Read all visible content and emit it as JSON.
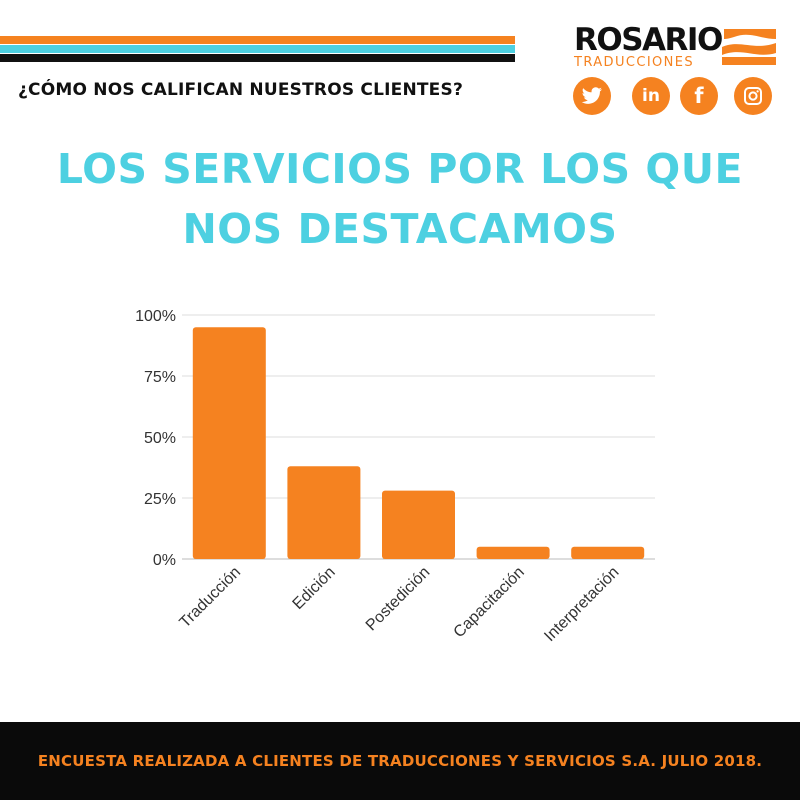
{
  "header": {
    "question": "¿CÓMO NOS CALIFICAN NUESTROS CLIENTES?",
    "brand_name": "ROSARIO",
    "brand_sub": "TRADUCCIONES"
  },
  "social_icons": [
    "twitter-icon",
    "linkedin-icon",
    "facebook-icon",
    "instagram-icon"
  ],
  "headline": {
    "line1": "LOS SERVICIOS POR LOS QUE",
    "line2": "NOS DESTACAMOS"
  },
  "colors": {
    "orange": "#f58220",
    "cyan": "#4dd0e1",
    "black": "#111111"
  },
  "chart_data": {
    "type": "bar",
    "categories": [
      "Traducción",
      "Edición",
      "Postedición",
      "Capacitación",
      "Interpretación"
    ],
    "values": [
      95,
      38,
      28,
      5,
      5
    ],
    "ylim": [
      0,
      100
    ],
    "yticks": [
      "0%",
      "25%",
      "50%",
      "75%",
      "100%"
    ],
    "grid": true,
    "bar_color": "#f58220"
  },
  "footer": {
    "text": "ENCUESTA REALIZADA A CLIENTES DE TRADUCCIONES Y SERVICIOS S.A. JULIO 2018."
  }
}
